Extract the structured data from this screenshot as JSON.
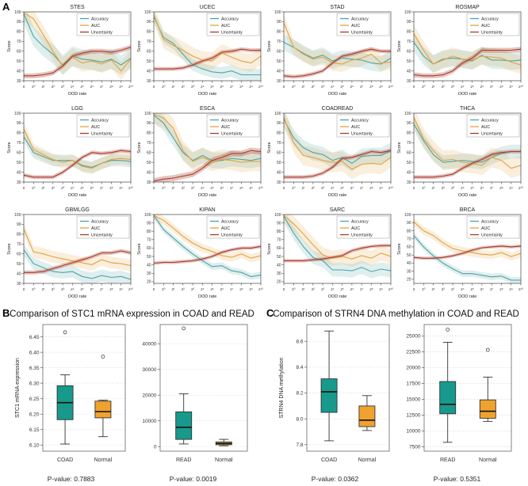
{
  "figure": {
    "panel_a_label": "A",
    "panel_b_label": "B",
    "panel_c_label": "C",
    "panel_b_title": "Comparison of STC1 mRNA expression in COAD and READ",
    "panel_c_title": "Comparison of STRN4 DNA methylation in COAD and READ"
  },
  "colors": {
    "accuracy": "#4fa3a3",
    "auc": "#e2a23f",
    "uncertainty": "#a83a2b",
    "box_teal": "#17998c",
    "box_orange": "#f0a22e"
  },
  "line_common": {
    "xlabel": "OOD rate",
    "ylabel": "Score",
    "xticklabels": [
      "0",
      "2⁰",
      "2¹",
      "2²",
      "2³",
      "2⁴",
      "2⁵",
      "2⁶",
      "2⁷",
      "2⁸",
      "2⁹",
      "2¹⁰"
    ],
    "legend": [
      "Accuracy",
      "AUC",
      "Uncertainty"
    ]
  },
  "chart_data": [
    {
      "type": "line",
      "panel": "A",
      "title": "STES",
      "ylim": [
        30,
        100
      ],
      "yticks": [
        30,
        40,
        50,
        60,
        70,
        80,
        90,
        100
      ],
      "series": [
        {
          "name": "Accuracy",
          "values": [
            98,
            75,
            65,
            57,
            46,
            55,
            52,
            51,
            49,
            52,
            46,
            53
          ],
          "band": 10
        },
        {
          "name": "AUC",
          "values": [
            99,
            93,
            77,
            60,
            45,
            54,
            48,
            50,
            47,
            51,
            40,
            52
          ],
          "band": 9
        },
        {
          "name": "Uncertainty",
          "values": [
            35,
            35,
            36,
            38,
            45,
            55,
            58,
            60,
            60,
            59,
            61,
            64
          ],
          "band": 2.5
        }
      ]
    },
    {
      "type": "line",
      "panel": "A",
      "title": "UCEC",
      "ylim": [
        30,
        100
      ],
      "yticks": [
        30,
        40,
        50,
        60,
        70,
        80,
        90,
        100
      ],
      "series": [
        {
          "name": "Accuracy",
          "values": [
            95,
            74,
            68,
            57,
            46,
            42,
            39,
            38,
            40,
            36,
            36,
            36
          ],
          "band": 6
        },
        {
          "name": "AUC",
          "values": [
            97,
            72,
            66,
            61,
            55,
            51,
            50,
            58,
            54,
            50,
            48,
            55
          ],
          "band": 9
        },
        {
          "name": "Uncertainty",
          "values": [
            42,
            42,
            42,
            43,
            46,
            50,
            53,
            59,
            60,
            62,
            61,
            61
          ],
          "band": 2
        }
      ]
    },
    {
      "type": "line",
      "panel": "A",
      "title": "STAD",
      "ylim": [
        30,
        100
      ],
      "yticks": [
        30,
        40,
        50,
        60,
        70,
        80,
        90,
        100
      ],
      "series": [
        {
          "name": "Accuracy",
          "values": [
            69,
            64,
            58,
            53,
            56,
            50,
            53,
            52,
            51,
            48,
            47,
            53
          ],
          "band": 8
        },
        {
          "name": "AUC",
          "values": [
            89,
            64,
            57,
            52,
            54,
            48,
            47,
            51,
            53,
            57,
            48,
            49
          ],
          "band": 8
        },
        {
          "name": "Uncertainty",
          "values": [
            35,
            34,
            35,
            37,
            40,
            48,
            55,
            57,
            60,
            62,
            60,
            60
          ],
          "band": 2
        }
      ]
    },
    {
      "type": "line",
      "panel": "A",
      "title": "ROSMAP",
      "ylim": [
        30,
        100
      ],
      "yticks": [
        30,
        40,
        50,
        60,
        70,
        80,
        90,
        100
      ],
      "series": [
        {
          "name": "Accuracy",
          "values": [
            69,
            55,
            47,
            52,
            53,
            52,
            50,
            56,
            51,
            51,
            50,
            51
          ],
          "band": 9
        },
        {
          "name": "AUC",
          "values": [
            78,
            61,
            47,
            51,
            55,
            52,
            51,
            55,
            54,
            53,
            49,
            46
          ],
          "band": 9
        },
        {
          "name": "Uncertainty",
          "values": [
            36,
            35,
            35,
            36,
            40,
            48,
            53,
            61,
            61,
            61,
            61,
            62
          ],
          "band": 2.5
        }
      ]
    },
    {
      "type": "line",
      "panel": "A",
      "title": "LGG",
      "ylim": [
        30,
        100
      ],
      "yticks": [
        30,
        40,
        50,
        60,
        70,
        80,
        90,
        100
      ],
      "series": [
        {
          "name": "Accuracy",
          "values": [
            76,
            60,
            56,
            52,
            52,
            52,
            47,
            45,
            49,
            52,
            52,
            51
          ],
          "band": 6
        },
        {
          "name": "AUC",
          "values": [
            84,
            63,
            58,
            53,
            50,
            52,
            46,
            44,
            49,
            53,
            54,
            53
          ],
          "band": 6
        },
        {
          "name": "Uncertainty",
          "values": [
            37,
            35,
            35,
            35,
            40,
            47,
            55,
            60,
            59,
            60,
            62,
            61
          ],
          "band": 2
        }
      ]
    },
    {
      "type": "line",
      "panel": "A",
      "title": "ESCA",
      "ylim": [
        30,
        100
      ],
      "yticks": [
        30,
        40,
        50,
        60,
        70,
        80,
        90,
        100
      ],
      "series": [
        {
          "name": "Accuracy",
          "values": [
            98,
            90,
            75,
            60,
            52,
            57,
            52,
            52,
            54,
            53,
            52,
            54
          ],
          "band": 8
        },
        {
          "name": "AUC",
          "values": [
            99,
            95,
            85,
            62,
            51,
            55,
            51,
            53,
            52,
            50,
            51,
            51
          ],
          "band": 10
        },
        {
          "name": "Uncertainty",
          "values": [
            31,
            33,
            34,
            36,
            38,
            44,
            52,
            55,
            59,
            59,
            62,
            61
          ],
          "band": 3
        }
      ]
    },
    {
      "type": "line",
      "panel": "A",
      "title": "COADREAD",
      "ylim": [
        30,
        100
      ],
      "yticks": [
        30,
        40,
        50,
        60,
        70,
        80,
        90,
        100
      ],
      "series": [
        {
          "name": "Accuracy",
          "values": [
            94,
            75,
            65,
            60,
            58,
            52,
            55,
            49,
            56,
            57,
            57,
            62
          ],
          "band": 8
        },
        {
          "name": "AUC",
          "values": [
            96,
            70,
            57,
            55,
            52,
            50,
            51,
            43,
            48,
            49,
            48,
            55
          ],
          "band": 10
        },
        {
          "name": "Uncertainty",
          "values": [
            35,
            35,
            35,
            36,
            39,
            45,
            54,
            55,
            58,
            61,
            60,
            62
          ],
          "band": 2
        }
      ]
    },
    {
      "type": "line",
      "panel": "A",
      "title": "THCA",
      "ylim": [
        30,
        100
      ],
      "yticks": [
        30,
        40,
        50,
        60,
        70,
        80,
        90,
        100
      ],
      "series": [
        {
          "name": "Accuracy",
          "values": [
            89,
            72,
            58,
            50,
            51,
            52,
            51,
            50,
            55,
            59,
            61,
            61
          ],
          "band": 7
        },
        {
          "name": "AUC",
          "values": [
            96,
            74,
            62,
            52,
            53,
            50,
            49,
            47,
            55,
            52,
            44,
            47
          ],
          "band": 10
        },
        {
          "name": "Uncertainty",
          "values": [
            35,
            35,
            35,
            36,
            38,
            44,
            49,
            53,
            58,
            60,
            61,
            61
          ],
          "band": 2
        }
      ]
    },
    {
      "type": "line",
      "panel": "A",
      "title": "GBMLGG",
      "ylim": [
        30,
        100
      ],
      "yticks": [
        30,
        40,
        50,
        60,
        70,
        80,
        90,
        100
      ],
      "series": [
        {
          "name": "Accuracy",
          "values": [
            64,
            50,
            46,
            42,
            41,
            42,
            37,
            35,
            38,
            36,
            37,
            34
          ],
          "band": 6
        },
        {
          "name": "AUC",
          "values": [
            85,
            62,
            60,
            57,
            55,
            53,
            51,
            49,
            54,
            51,
            50,
            48
          ],
          "band": 6
        },
        {
          "name": "Uncertainty",
          "values": [
            41,
            41,
            42,
            45,
            48,
            51,
            54,
            57,
            61,
            61,
            63,
            61
          ],
          "band": 2
        }
      ]
    },
    {
      "type": "line",
      "panel": "A",
      "title": "KIPAN",
      "ylim": [
        18,
        100
      ],
      "yticks": [
        20,
        30,
        40,
        50,
        60,
        70,
        80,
        90,
        100
      ],
      "series": [
        {
          "name": "Accuracy",
          "values": [
            99,
            82,
            72,
            62,
            53,
            45,
            38,
            39,
            33,
            31,
            26,
            28
          ],
          "band": 4
        },
        {
          "name": "AUC",
          "values": [
            99,
            93,
            84,
            74,
            66,
            60,
            56,
            51,
            49,
            53,
            48,
            51
          ],
          "band": 5
        },
        {
          "name": "Uncertainty",
          "values": [
            42,
            43,
            43,
            44,
            45,
            47,
            50,
            55,
            58,
            60,
            60,
            62
          ],
          "band": 2
        }
      ]
    },
    {
      "type": "line",
      "panel": "A",
      "title": "SARC",
      "ylim": [
        18,
        100
      ],
      "yticks": [
        20,
        30,
        40,
        50,
        60,
        70,
        80,
        90,
        100
      ],
      "series": [
        {
          "name": "Accuracy",
          "values": [
            98,
            78,
            62,
            49,
            45,
            34,
            34,
            33,
            37,
            32,
            35,
            33
          ],
          "band": 8
        },
        {
          "name": "AUC",
          "values": [
            99,
            89,
            77,
            64,
            52,
            48,
            50,
            47,
            51,
            48,
            54,
            50
          ],
          "band": 9
        },
        {
          "name": "Uncertainty",
          "values": [
            45,
            45,
            45,
            46,
            47,
            49,
            51,
            57,
            60,
            62,
            63,
            63
          ],
          "band": 2
        }
      ]
    },
    {
      "type": "line",
      "panel": "A",
      "title": "BRCA",
      "ylim": [
        15,
        100
      ],
      "yticks": [
        20,
        30,
        40,
        50,
        60,
        70,
        80,
        90,
        100
      ],
      "series": [
        {
          "name": "Accuracy",
          "values": [
            74,
            60,
            49,
            40,
            33,
            27,
            27,
            25,
            23,
            24,
            19,
            19
          ],
          "band": 4
        },
        {
          "name": "AUC",
          "values": [
            91,
            80,
            74,
            65,
            58,
            55,
            53,
            51,
            50,
            53,
            48,
            52
          ],
          "band": 5
        },
        {
          "name": "Uncertainty",
          "values": [
            47,
            46,
            46,
            47,
            49,
            52,
            56,
            59,
            60,
            61,
            60,
            61
          ],
          "band": 2
        }
      ]
    },
    {
      "type": "box",
      "panel": "B",
      "ylabel": "STC1 mRNA expression",
      "pvalue": "P-value: 0.7883",
      "ylim": [
        6.08,
        6.49
      ],
      "yticks": [
        "6.10",
        "6.15",
        "6.20",
        "6.25",
        "6.30",
        "6.35",
        "6.40",
        "6.45"
      ],
      "boxes": [
        {
          "label": "COAD",
          "color": "box_teal",
          "low": 6.103,
          "q1": 6.182,
          "med": 6.237,
          "q3": 6.292,
          "high": 6.327,
          "outliers": [
            6.465
          ]
        },
        {
          "label": "Normal",
          "color": "box_orange",
          "low": 6.127,
          "q1": 6.188,
          "med": 6.208,
          "q3": 6.242,
          "high": 6.245,
          "outliers": [
            6.386
          ]
        }
      ]
    },
    {
      "type": "box",
      "panel": "B",
      "ylabel": "",
      "pvalue": "P-value: 0.0019",
      "ylim": [
        -1800,
        47500
      ],
      "yticks": [
        "0",
        "10000",
        "20000",
        "30000",
        "40000"
      ],
      "boxes": [
        {
          "label": "READ",
          "color": "box_teal",
          "low": 1000,
          "q1": 2800,
          "med": 7500,
          "q3": 13500,
          "high": 20500,
          "outliers": [
            46000
          ]
        },
        {
          "label": "Normal",
          "color": "box_orange",
          "low": 300,
          "q1": 700,
          "med": 1200,
          "q3": 1800,
          "high": 2800,
          "outliers": []
        }
      ]
    },
    {
      "type": "box",
      "panel": "C",
      "ylabel": "STRN4 DNA methylation",
      "pvalue": "P-value: 0.0362",
      "ylim": [
        7.75,
        8.73
      ],
      "yticks": [
        "7.8",
        "8.0",
        "8.2",
        "8.4",
        "8.6"
      ],
      "boxes": [
        {
          "label": "COAD",
          "color": "box_teal",
          "low": 7.83,
          "q1": 8.05,
          "med": 8.21,
          "q3": 8.31,
          "high": 8.68,
          "outliers": []
        },
        {
          "label": "Normal",
          "color": "box_orange",
          "low": 7.91,
          "q1": 7.94,
          "med": 7.99,
          "q3": 8.1,
          "high": 8.18,
          "outliers": []
        }
      ]
    },
    {
      "type": "box",
      "panel": "C",
      "ylabel": "",
      "pvalue": "P-value: 0.5351",
      "ylim": [
        6800,
        26800
      ],
      "yticks": [
        "7500",
        "10000",
        "12500",
        "15000",
        "17500",
        "20000",
        "22500",
        "25000"
      ],
      "boxes": [
        {
          "label": "READ",
          "color": "box_teal",
          "low": 8200,
          "q1": 12700,
          "med": 14200,
          "q3": 17800,
          "high": 24000,
          "outliers": [
            26000
          ]
        },
        {
          "label": "Normal",
          "color": "box_orange",
          "low": 11500,
          "q1": 12000,
          "med": 13100,
          "q3": 14900,
          "high": 18500,
          "outliers": [
            22800
          ]
        }
      ]
    }
  ]
}
